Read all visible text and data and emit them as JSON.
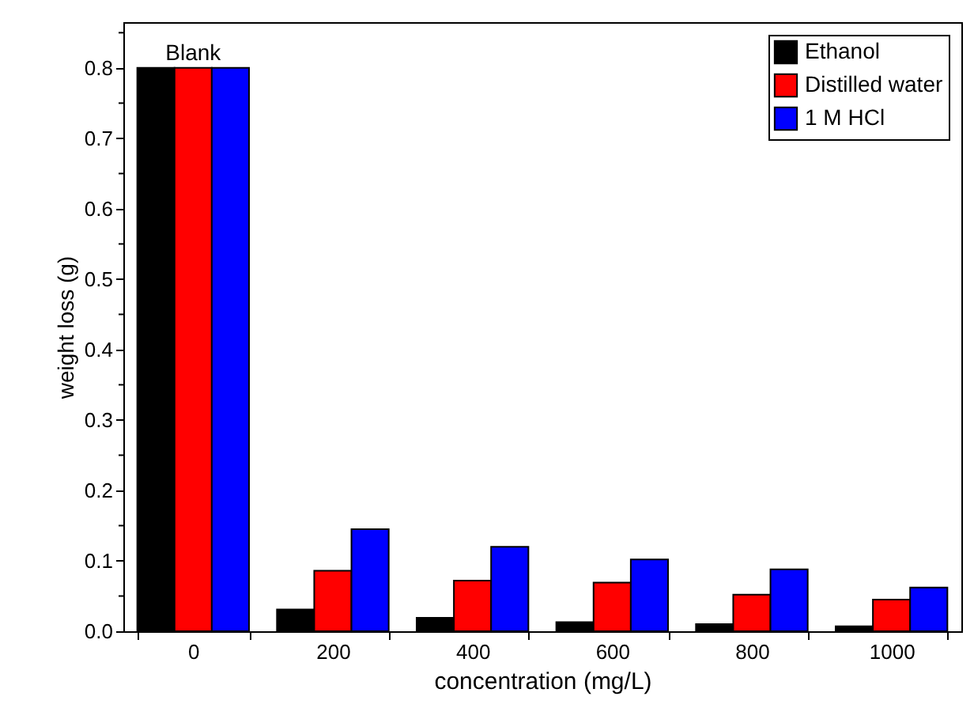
{
  "chart_data": {
    "type": "bar",
    "xlabel": "concentration (mg/L)",
    "ylabel": "weight loss (g)",
    "categories": [
      "0",
      "200",
      "400",
      "600",
      "800",
      "1000"
    ],
    "series": [
      {
        "name": "Ethanol",
        "color": "#000000",
        "values": [
          0.8,
          0.031,
          0.019,
          0.013,
          0.01,
          0.007
        ]
      },
      {
        "name": "Distilled water",
        "color": "#ff0000",
        "values": [
          0.8,
          0.086,
          0.072,
          0.069,
          0.052,
          0.045
        ]
      },
      {
        "name": "1 M HCl",
        "color": "#0000ff",
        "values": [
          0.8,
          0.145,
          0.12,
          0.102,
          0.088,
          0.062
        ]
      }
    ],
    "ylim": [
      0,
      0.865
    ],
    "yticks": [
      {
        "value": 0,
        "label": "0.0"
      },
      {
        "value": 0.05,
        "label": null
      },
      {
        "value": 0.1,
        "label": "0.1"
      },
      {
        "value": 0.15,
        "label": null
      },
      {
        "value": 0.2,
        "label": "0.2"
      },
      {
        "value": 0.25,
        "label": null
      },
      {
        "value": 0.3,
        "label": "0.3"
      },
      {
        "value": 0.35,
        "label": null
      },
      {
        "value": 0.4,
        "label": "0.4"
      },
      {
        "value": 0.45,
        "label": null
      },
      {
        "value": 0.5,
        "label": "0.5"
      },
      {
        "value": 0.55,
        "label": null
      },
      {
        "value": 0.6,
        "label": "0.6"
      },
      {
        "value": 0.65,
        "label": null
      },
      {
        "value": 0.7,
        "label": "0.7"
      },
      {
        "value": 0.75,
        "label": null
      },
      {
        "value": 0.8,
        "label": "0.8"
      },
      {
        "value": 0.85,
        "label": null
      }
    ],
    "annotations": [
      {
        "text": "Blank",
        "x": "0",
        "y": 0.8
      }
    ],
    "legend": "top right",
    "grid": false
  }
}
